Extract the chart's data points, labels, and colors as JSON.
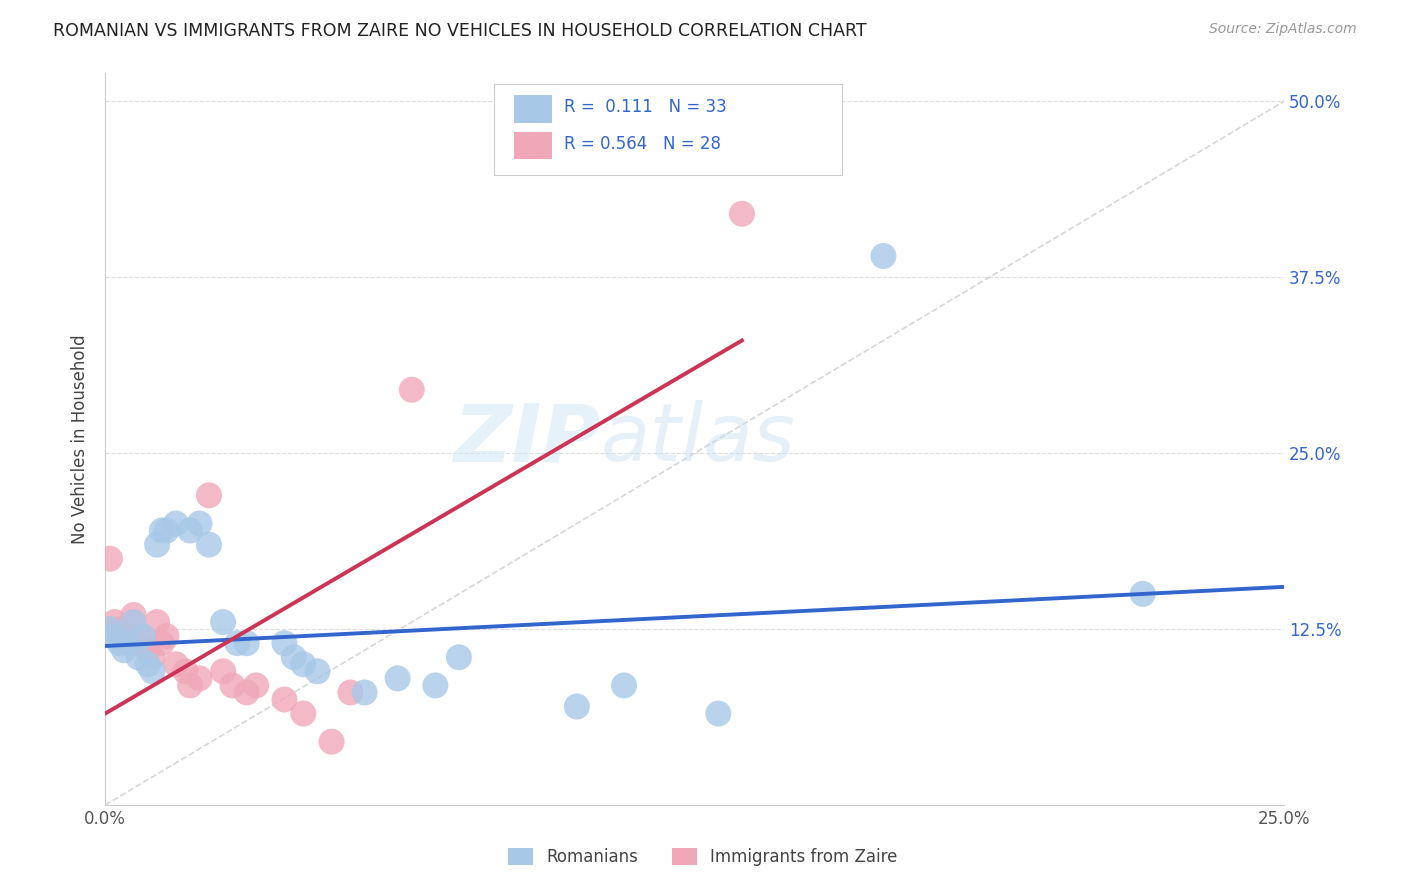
{
  "title": "ROMANIAN VS IMMIGRANTS FROM ZAIRE NO VEHICLES IN HOUSEHOLD CORRELATION CHART",
  "source": "Source: ZipAtlas.com",
  "ylabel": "No Vehicles in Household",
  "xlim": [
    0.0,
    0.25
  ],
  "ylim": [
    0.0,
    0.52
  ],
  "xticks": [
    0.0,
    0.05,
    0.1,
    0.15,
    0.2,
    0.25
  ],
  "xticklabels": [
    "0.0%",
    "",
    "",
    "",
    "",
    "25.0%"
  ],
  "yticks": [
    0.0,
    0.125,
    0.25,
    0.375,
    0.5
  ],
  "yticklabels": [
    "",
    "12.5%",
    "25.0%",
    "37.5%",
    "50.0%"
  ],
  "color_romanian": "#a8c8e8",
  "color_zaire": "#f0a8b8",
  "line_color_romanian": "#3366cc",
  "line_color_zaire": "#cc3355",
  "diagonal_color": "#cccccc",
  "watermark_zip": "ZIP",
  "watermark_atlas": "atlas",
  "background_color": "#ffffff",
  "grid_color": "#dddddd",
  "romanian_x": [
    0.001,
    0.002,
    0.003,
    0.004,
    0.005,
    0.006,
    0.007,
    0.008,
    0.009,
    0.01,
    0.011,
    0.012,
    0.013,
    0.015,
    0.018,
    0.02,
    0.022,
    0.025,
    0.028,
    0.03,
    0.038,
    0.04,
    0.042,
    0.045,
    0.055,
    0.062,
    0.07,
    0.075,
    0.1,
    0.11,
    0.13,
    0.165,
    0.22
  ],
  "romanian_y": [
    0.125,
    0.12,
    0.115,
    0.11,
    0.115,
    0.13,
    0.105,
    0.12,
    0.1,
    0.095,
    0.185,
    0.195,
    0.195,
    0.2,
    0.195,
    0.2,
    0.185,
    0.13,
    0.115,
    0.115,
    0.115,
    0.105,
    0.1,
    0.095,
    0.08,
    0.09,
    0.085,
    0.105,
    0.07,
    0.085,
    0.065,
    0.39,
    0.15
  ],
  "zaire_x": [
    0.001,
    0.002,
    0.003,
    0.004,
    0.005,
    0.006,
    0.007,
    0.008,
    0.009,
    0.01,
    0.011,
    0.012,
    0.013,
    0.015,
    0.017,
    0.018,
    0.02,
    0.022,
    0.025,
    0.027,
    0.03,
    0.032,
    0.038,
    0.042,
    0.048,
    0.052,
    0.065,
    0.135
  ],
  "zaire_y": [
    0.175,
    0.13,
    0.125,
    0.12,
    0.115,
    0.135,
    0.12,
    0.115,
    0.11,
    0.105,
    0.13,
    0.115,
    0.12,
    0.1,
    0.095,
    0.085,
    0.09,
    0.22,
    0.095,
    0.085,
    0.08,
    0.085,
    0.075,
    0.065,
    0.045,
    0.08,
    0.295,
    0.42
  ],
  "ro_line_x0": 0.0,
  "ro_line_y0": 0.113,
  "ro_line_x1": 0.25,
  "ro_line_y1": 0.155,
  "za_line_x0": 0.0,
  "za_line_y0": 0.065,
  "za_line_x1": 0.135,
  "za_line_y1": 0.33
}
